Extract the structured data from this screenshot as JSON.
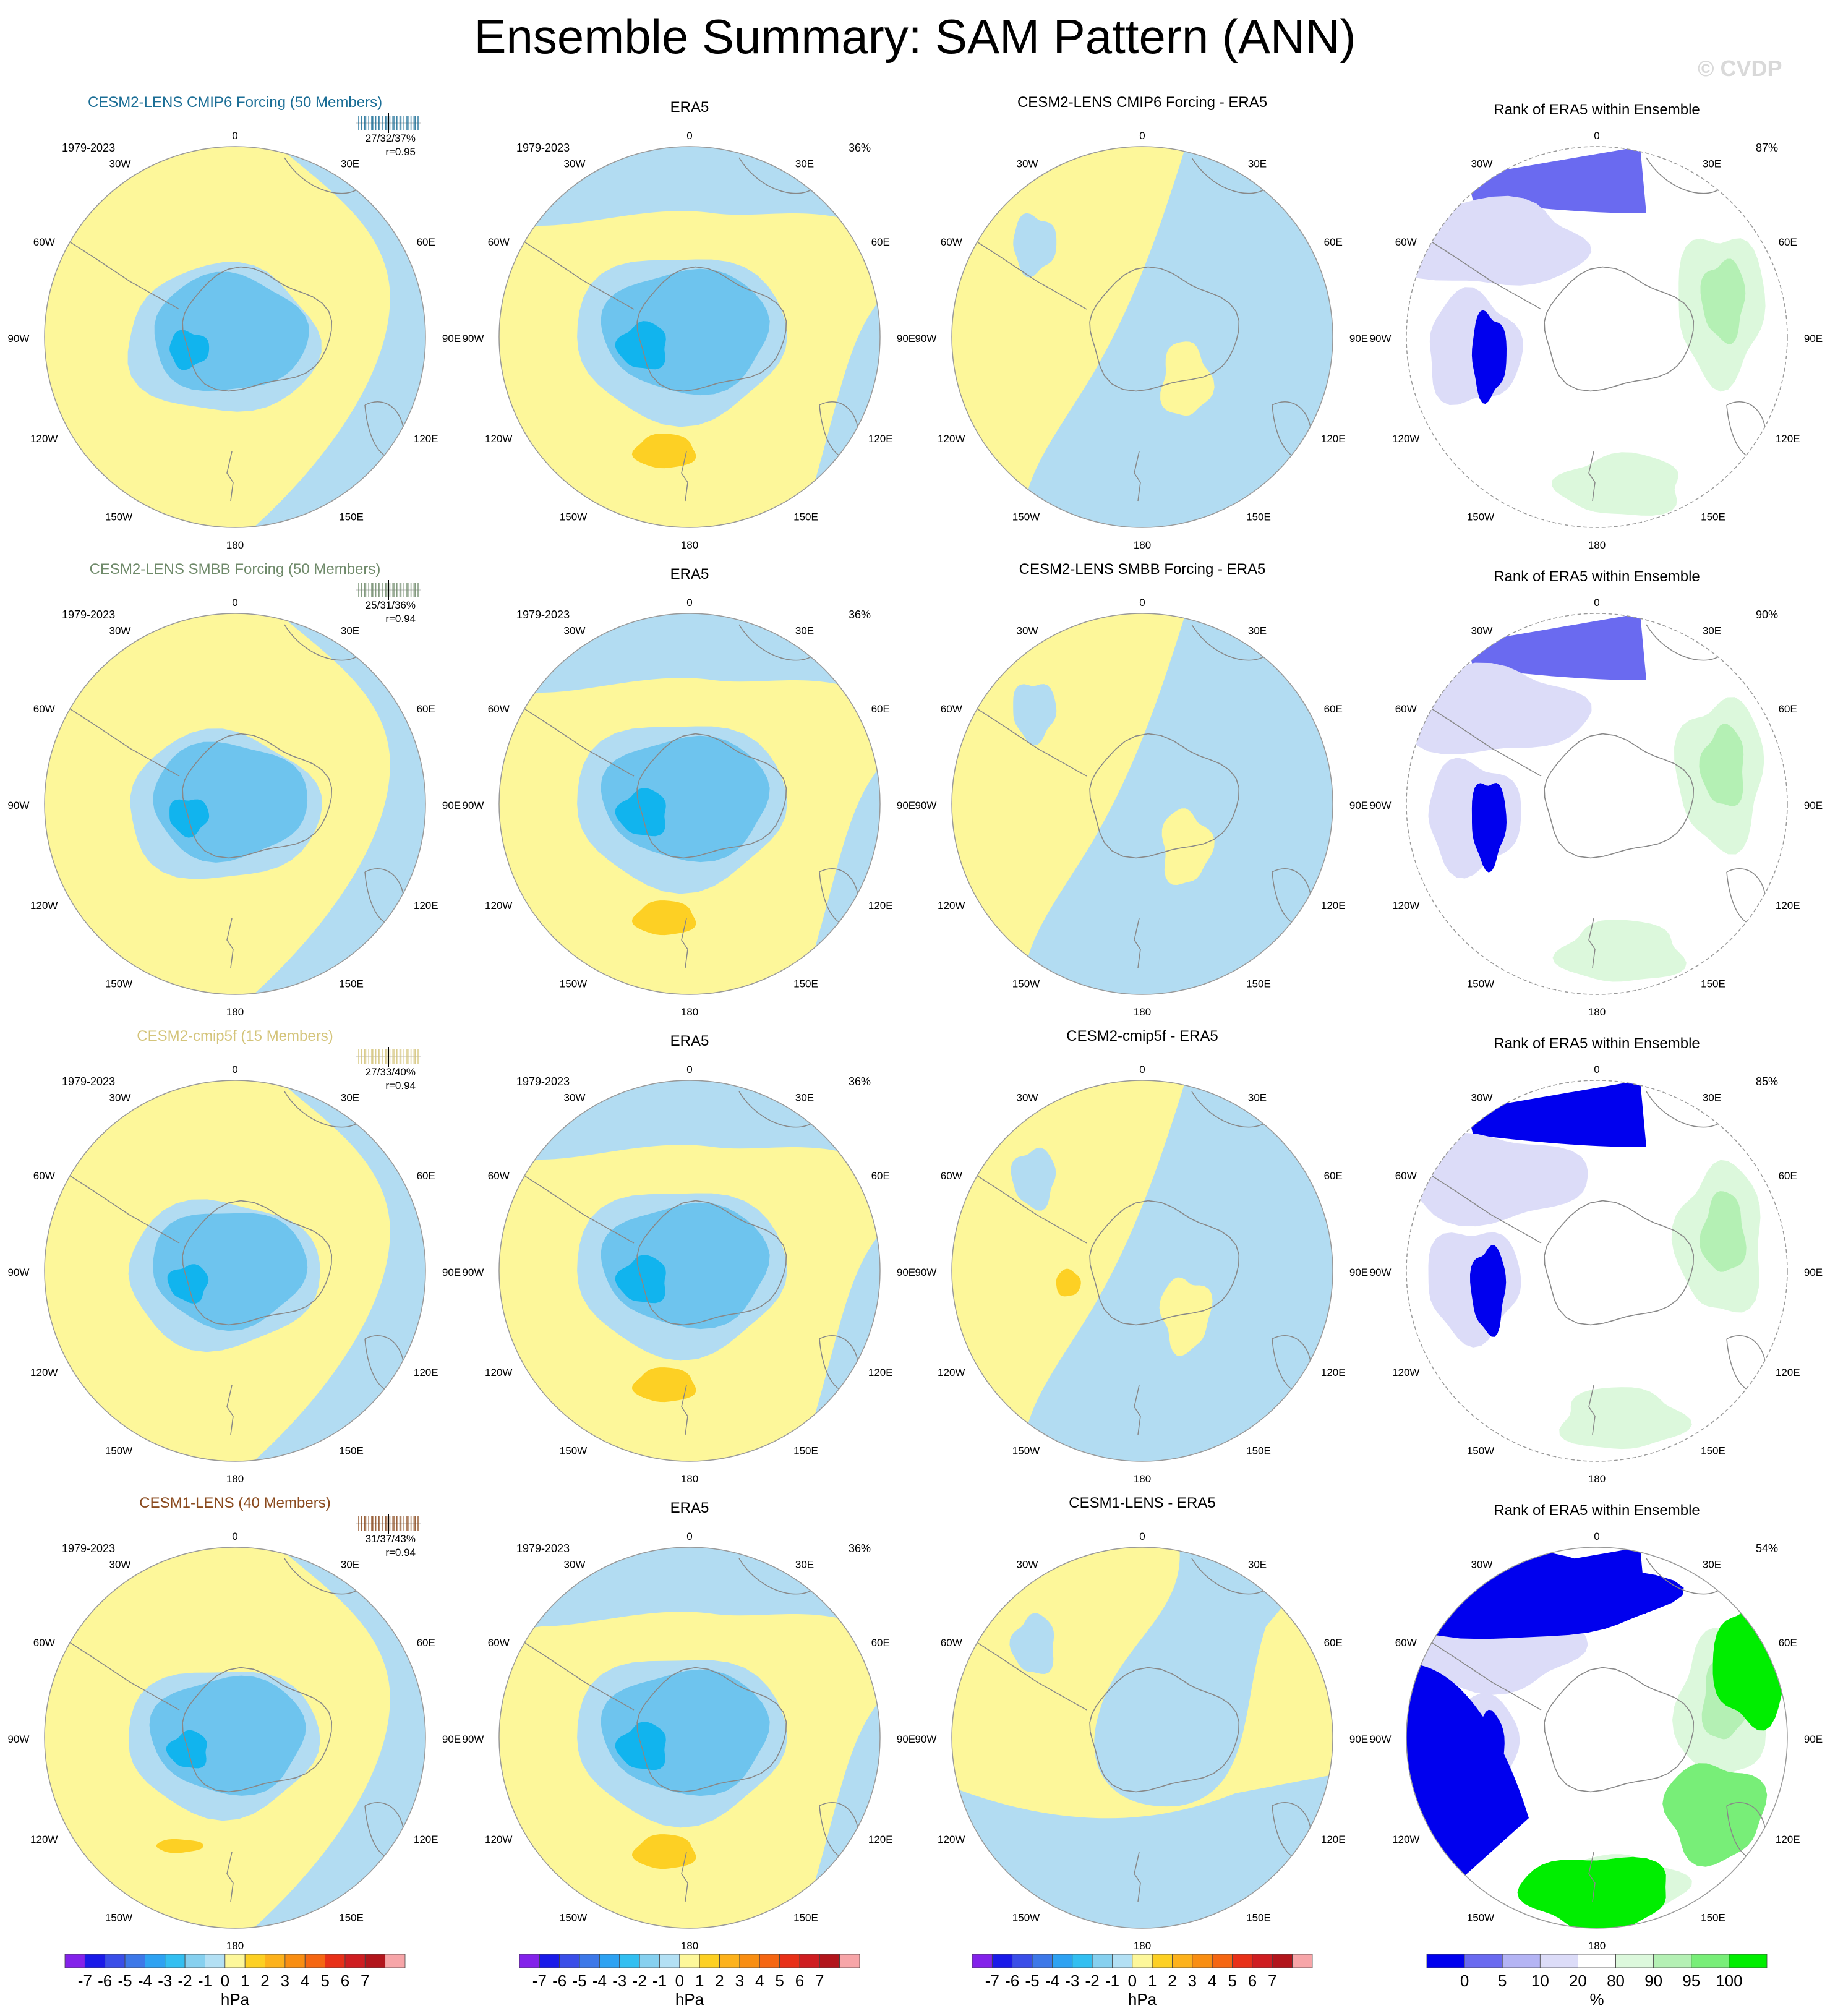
{
  "page": {
    "title": "Ensemble Summary: SAM Pattern (ANN)",
    "watermark": "© CVDP"
  },
  "chart_data": {
    "type": "polar-map-panels",
    "lon_labels": [
      "0",
      "30E",
      "60E",
      "90E",
      "120E",
      "150E",
      "180",
      "150W",
      "120W",
      "90W",
      "60W",
      "30W"
    ],
    "period": "1979-2023",
    "colors": {
      "yellow": "#fdf79a",
      "lightblue": "#b2dcf2",
      "blue1": "#6ec4ee",
      "blue2": "#11b4ee",
      "orange": "#fdd024",
      "white": "#ffffff",
      "coast": "#888888"
    },
    "rows": [
      {
        "model_title": "CESM2-LENS CMIP6 Forcing (50 Members)",
        "title_color": "#1b6e96",
        "stats": "27/32/37%",
        "corr": "r=0.95",
        "obs_title": "ERA5",
        "obs_pct": "36%",
        "diff_title": "CESM2-LENS CMIP6 Forcing - ERA5",
        "rank_title": "Rank of ERA5 within Ensemble",
        "rank_pct": "87%"
      },
      {
        "model_title": "CESM2-LENS SMBB Forcing (50 Members)",
        "title_color": "#6f8a6a",
        "stats": "25/31/36%",
        "corr": "r=0.94",
        "obs_title": "ERA5",
        "obs_pct": "36%",
        "diff_title": "CESM2-LENS SMBB Forcing - ERA5",
        "rank_title": "Rank of ERA5 within Ensemble",
        "rank_pct": "90%"
      },
      {
        "model_title": "CESM2-cmip5f (15 Members)",
        "title_color": "#d4c47a",
        "stats": "27/33/40%",
        "corr": "r=0.94",
        "obs_title": "ERA5",
        "obs_pct": "36%",
        "diff_title": "CESM2-cmip5f - ERA5",
        "rank_title": "Rank of ERA5 within Ensemble",
        "rank_pct": "85%"
      },
      {
        "model_title": "CESM1-LENS (40 Members)",
        "title_color": "#8a4a1e",
        "stats": "31/37/43%",
        "corr": "r=0.94",
        "obs_title": "ERA5",
        "obs_pct": "36%",
        "diff_title": "CESM1-LENS - ERA5",
        "rank_title": "Rank of ERA5 within Ensemble",
        "rank_pct": "54%"
      }
    ],
    "colorbar_hpa": {
      "colors": [
        "#8322ea",
        "#1a1ae8",
        "#3a4ee8",
        "#3d78e8",
        "#2ea2f2",
        "#33bff1",
        "#86d0ef",
        "#b3e0f4",
        "#fdf79a",
        "#fdd023",
        "#fdb21c",
        "#f98e12",
        "#f56612",
        "#e83018",
        "#cf1d21",
        "#b2151c",
        "#f7a5a8"
      ],
      "labels": [
        "-7",
        "-6",
        "-5",
        "-4",
        "-3",
        "-2",
        "-1",
        "0",
        "1",
        "2",
        "3",
        "4",
        "5",
        "6",
        "7"
      ],
      "unit": "hPa"
    },
    "colorbar_rank": {
      "colors": [
        "#0000ee",
        "#6a6af0",
        "#b4b4f4",
        "#dcdcf8",
        "#ffffff",
        "#dcf8dc",
        "#b4f0b4",
        "#78ee78",
        "#00ee00"
      ],
      "labels": [
        "0",
        "5",
        "10",
        "20",
        "80",
        "90",
        "95",
        "100"
      ],
      "unit": "%"
    }
  }
}
